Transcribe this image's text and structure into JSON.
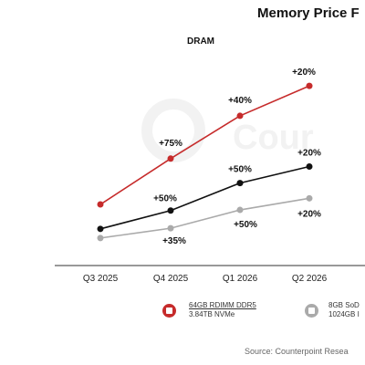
{
  "header": {
    "title": "Memory Price F",
    "subtitle": "DRAM"
  },
  "chart_data": {
    "type": "line",
    "title": "Memory Price F",
    "subtitle": "DRAM",
    "categories": [
      "Q3 2025",
      "Q4 2025",
      "Q1 2026",
      "Q2 2026"
    ],
    "series": [
      {
        "name": "64GB RDIMM DDR5",
        "color": "#c62b2b",
        "values": [
          100,
          175,
          245,
          294
        ],
        "labels": [
          "",
          "+75%",
          "+40%",
          "+20%"
        ]
      },
      {
        "name": "",
        "color": "#111111",
        "values": [
          60,
          90,
          135,
          162
        ],
        "labels": [
          "",
          "+50%",
          "+50%",
          "+20%"
        ]
      },
      {
        "name": "8GB SoD",
        "color": "#aaaaaa",
        "values": [
          45,
          61,
          91,
          110
        ],
        "labels": [
          "",
          "+35%",
          "+50%",
          "+20%"
        ]
      }
    ],
    "ylim": [
      0,
      330
    ],
    "grid": false,
    "legend_position": "bottom"
  },
  "legend": [
    {
      "line1": "64GB RDIMM DDR5",
      "line2": "3.84TB NVMe",
      "color": "#c62b2b",
      "icon": "memory-chip-icon"
    },
    {
      "line1": "8GB SoD",
      "line2": "1024GB I",
      "color": "#aaaaaa",
      "icon": "memory-chip-icon"
    }
  ],
  "watermark": {
    "text": "Cour"
  },
  "source": "Source: Counterpoint Resea"
}
